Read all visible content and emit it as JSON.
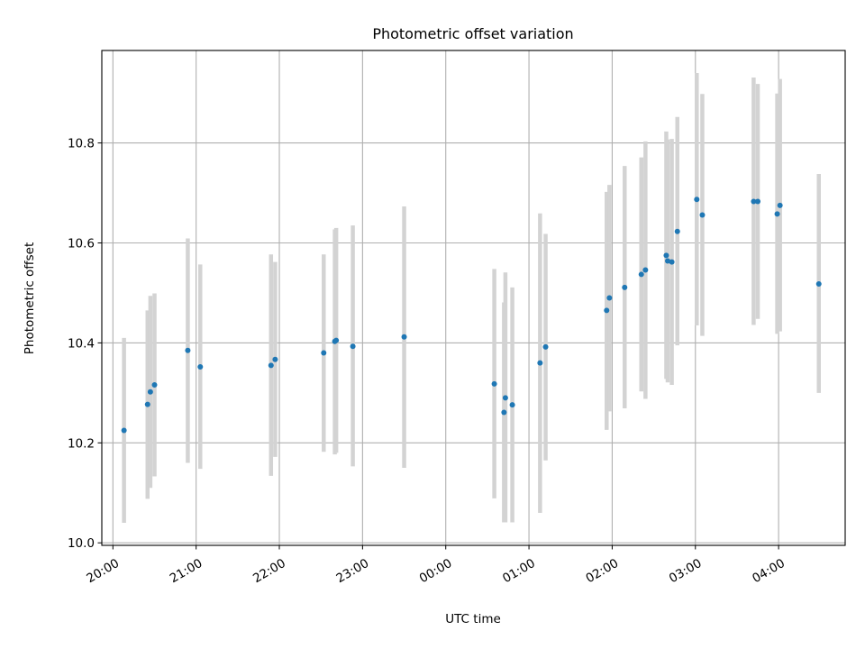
{
  "chart_data": {
    "type": "scatter",
    "title": "Photometric offset variation",
    "xlabel": "UTC time",
    "ylabel": "Photometric offset",
    "x_axis_kind": "time",
    "xlim": [
      "2000-01-01T19:52",
      "2000-01-02T04:48"
    ],
    "ylim": [
      9.995,
      10.985
    ],
    "x_ticks": [
      {
        "t": "2000-01-01T20:00",
        "label": "20:00"
      },
      {
        "t": "2000-01-01T21:00",
        "label": "21:00"
      },
      {
        "t": "2000-01-01T22:00",
        "label": "22:00"
      },
      {
        "t": "2000-01-01T23:00",
        "label": "23:00"
      },
      {
        "t": "2000-01-02T00:00",
        "label": "00:00"
      },
      {
        "t": "2000-01-02T01:00",
        "label": "01:00"
      },
      {
        "t": "2000-01-02T02:00",
        "label": "02:00"
      },
      {
        "t": "2000-01-02T03:00",
        "label": "03:00"
      },
      {
        "t": "2000-01-02T04:00",
        "label": "04:00"
      }
    ],
    "y_ticks": [
      {
        "v": 10.0,
        "label": "10.0"
      },
      {
        "v": 10.2,
        "label": "10.2"
      },
      {
        "v": 10.4,
        "label": "10.4"
      },
      {
        "v": 10.6,
        "label": "10.6"
      },
      {
        "v": 10.8,
        "label": "10.8"
      }
    ],
    "grid": true,
    "colors": {
      "point": "#1f77b4",
      "error_bar": "#d3d3d3"
    },
    "points": [
      {
        "t": "2000-01-01T20:08",
        "y": 10.225,
        "lo": 10.04,
        "hi": 10.41
      },
      {
        "t": "2000-01-01T20:25",
        "y": 10.277,
        "lo": 10.088,
        "hi": 10.465
      },
      {
        "t": "2000-01-01T20:27",
        "y": 10.302,
        "lo": 10.11,
        "hi": 10.494
      },
      {
        "t": "2000-01-01T20:30",
        "y": 10.316,
        "lo": 10.133,
        "hi": 10.499
      },
      {
        "t": "2000-01-01T20:54",
        "y": 10.385,
        "lo": 10.16,
        "hi": 10.609
      },
      {
        "t": "2000-01-01T21:03",
        "y": 10.352,
        "lo": 10.148,
        "hi": 10.557
      },
      {
        "t": "2000-01-01T21:54",
        "y": 10.355,
        "lo": 10.134,
        "hi": 10.577
      },
      {
        "t": "2000-01-01T21:57",
        "y": 10.367,
        "lo": 10.172,
        "hi": 10.562
      },
      {
        "t": "2000-01-01T22:32",
        "y": 10.38,
        "lo": 10.182,
        "hi": 10.577
      },
      {
        "t": "2000-01-01T22:40",
        "y": 10.403,
        "lo": 10.177,
        "hi": 10.627
      },
      {
        "t": "2000-01-01T22:41",
        "y": 10.405,
        "lo": 10.18,
        "hi": 10.63
      },
      {
        "t": "2000-01-01T22:53",
        "y": 10.393,
        "lo": 10.153,
        "hi": 10.635
      },
      {
        "t": "2000-01-01T23:30",
        "y": 10.412,
        "lo": 10.15,
        "hi": 10.673
      },
      {
        "t": "2000-01-02T00:35",
        "y": 10.318,
        "lo": 10.089,
        "hi": 10.548
      },
      {
        "t": "2000-01-02T00:42",
        "y": 10.261,
        "lo": 10.041,
        "hi": 10.481
      },
      {
        "t": "2000-01-02T00:43",
        "y": 10.29,
        "lo": 10.041,
        "hi": 10.541
      },
      {
        "t": "2000-01-02T00:48",
        "y": 10.276,
        "lo": 10.041,
        "hi": 10.511
      },
      {
        "t": "2000-01-02T01:08",
        "y": 10.36,
        "lo": 10.06,
        "hi": 10.659
      },
      {
        "t": "2000-01-02T01:12",
        "y": 10.392,
        "lo": 10.165,
        "hi": 10.618
      },
      {
        "t": "2000-01-02T01:56",
        "y": 10.465,
        "lo": 10.226,
        "hi": 10.702
      },
      {
        "t": "2000-01-02T01:58",
        "y": 10.49,
        "lo": 10.263,
        "hi": 10.716
      },
      {
        "t": "2000-01-02T02:09",
        "y": 10.511,
        "lo": 10.269,
        "hi": 10.754
      },
      {
        "t": "2000-01-02T02:21",
        "y": 10.537,
        "lo": 10.303,
        "hi": 10.771
      },
      {
        "t": "2000-01-02T02:24",
        "y": 10.546,
        "lo": 10.288,
        "hi": 10.803
      },
      {
        "t": "2000-01-02T02:39",
        "y": 10.575,
        "lo": 10.328,
        "hi": 10.823
      },
      {
        "t": "2000-01-02T02:40",
        "y": 10.564,
        "lo": 10.321,
        "hi": 10.807
      },
      {
        "t": "2000-01-02T02:43",
        "y": 10.562,
        "lo": 10.316,
        "hi": 10.808
      },
      {
        "t": "2000-01-02T02:47",
        "y": 10.623,
        "lo": 10.395,
        "hi": 10.852
      },
      {
        "t": "2000-01-02T03:01",
        "y": 10.687,
        "lo": 10.435,
        "hi": 10.94
      },
      {
        "t": "2000-01-02T03:05",
        "y": 10.656,
        "lo": 10.414,
        "hi": 10.898
      },
      {
        "t": "2000-01-02T03:42",
        "y": 10.683,
        "lo": 10.436,
        "hi": 10.931
      },
      {
        "t": "2000-01-02T03:45",
        "y": 10.683,
        "lo": 10.448,
        "hi": 10.918
      },
      {
        "t": "2000-01-02T03:59",
        "y": 10.658,
        "lo": 10.418,
        "hi": 10.899
      },
      {
        "t": "2000-01-02T04:01",
        "y": 10.675,
        "lo": 10.423,
        "hi": 10.928
      },
      {
        "t": "2000-01-02T04:29",
        "y": 10.518,
        "lo": 10.3,
        "hi": 10.738
      }
    ]
  }
}
